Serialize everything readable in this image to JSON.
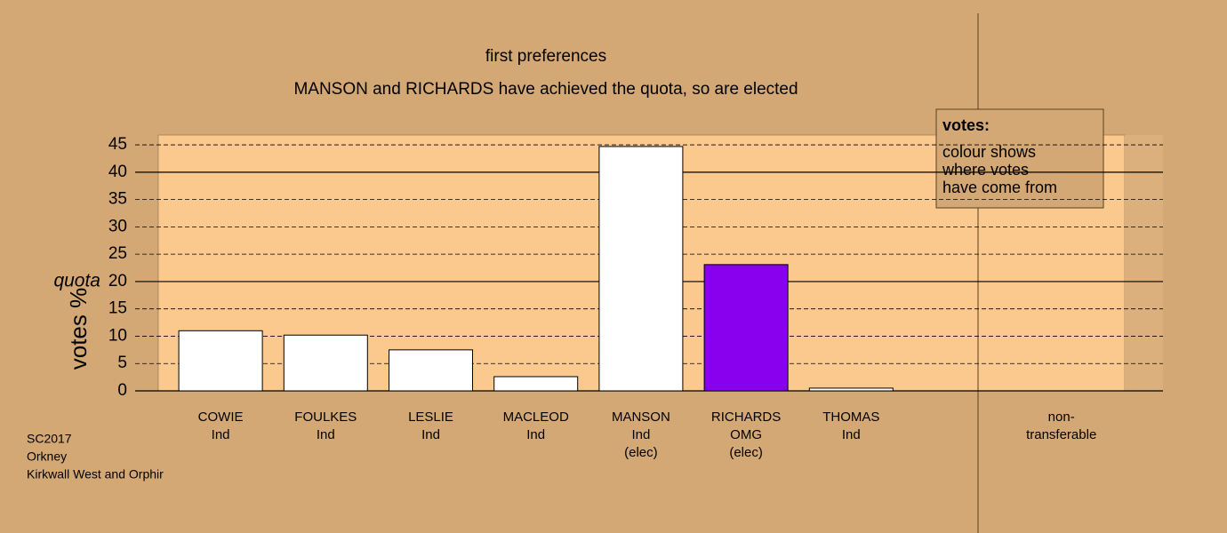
{
  "chart_data": {
    "type": "bar",
    "title": "first preferences",
    "subtitle": "MANSON and RICHARDS have achieved the quota, so are elected",
    "y_label": "votes %",
    "categories": [
      [
        "COWIE",
        "Ind"
      ],
      [
        "FOULKES",
        "Ind"
      ],
      [
        "LESLIE",
        "Ind"
      ],
      [
        "MACLEOD",
        "Ind"
      ],
      [
        "MANSON",
        "Ind",
        "(elec)"
      ],
      [
        "RICHARDS",
        "OMG",
        "(elec)"
      ],
      [
        "THOMAS",
        "Ind"
      ],
      null,
      [
        "non-",
        "transferable"
      ]
    ],
    "values": [
      11.0,
      10.2,
      7.5,
      2.6,
      44.7,
      23.1,
      0.5,
      null,
      null
    ],
    "colors": [
      "#ffffff",
      "#ffffff",
      "#ffffff",
      "#ffffff",
      "#ffffff",
      "#8800ee",
      "#ffffff",
      null,
      null
    ],
    "ylim": [
      0,
      46.8
    ],
    "yticks": [
      0,
      5,
      10,
      15,
      20,
      25,
      30,
      35,
      40,
      45
    ],
    "grid": true,
    "solid_grid_at": [
      20,
      40
    ],
    "quota": {
      "value": 20,
      "label": "quota"
    },
    "legend": {
      "title": "votes:",
      "lines": [
        "colour shows",
        "where votes",
        "have come from"
      ]
    },
    "footnote": [
      "SC2017",
      "Orkney",
      "Kirkwall West and Orphir"
    ]
  }
}
